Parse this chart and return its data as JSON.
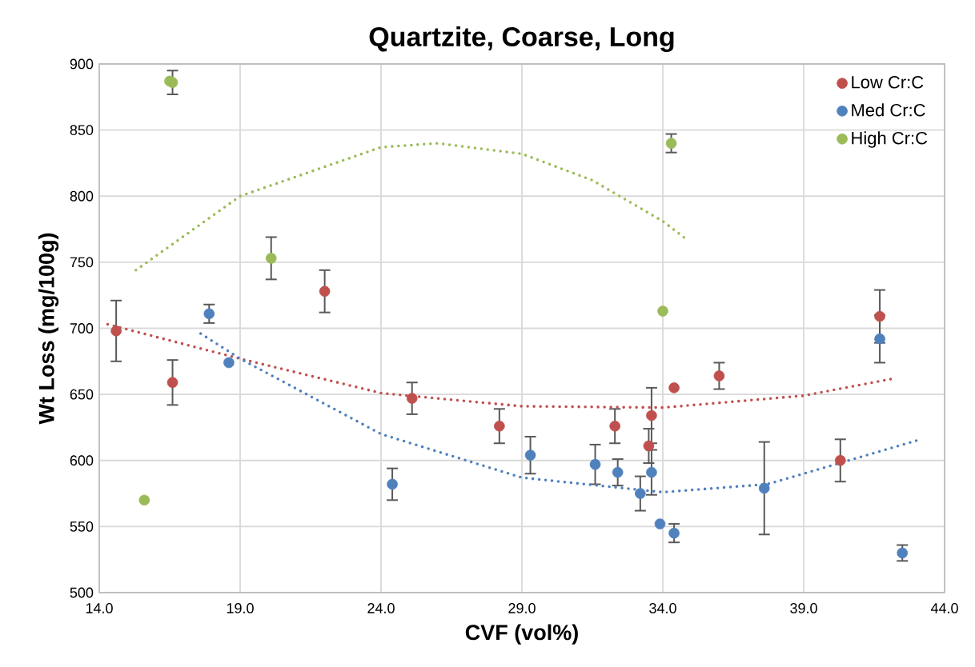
{
  "chart_data": {
    "type": "scatter",
    "title": "Quartzite, Coarse, Long",
    "xlabel": "CVF (vol%)",
    "ylabel": "Wt Loss (mg/100g)",
    "xlim": [
      14,
      44
    ],
    "ylim": [
      500,
      900
    ],
    "xticks": [
      {
        "value": 14,
        "label": "14.0"
      },
      {
        "value": 19,
        "label": "19.0"
      },
      {
        "value": 24,
        "label": "24.0"
      },
      {
        "value": 29,
        "label": "29.0"
      },
      {
        "value": 34,
        "label": "34.0"
      },
      {
        "value": 39,
        "label": "39.0"
      },
      {
        "value": 44,
        "label": "44.0"
      }
    ],
    "yticks": [
      500,
      550,
      600,
      650,
      700,
      750,
      800,
      850,
      900
    ],
    "grid": true,
    "legend": "top right",
    "marker": "circle",
    "series": [
      {
        "name": "Low Cr:C",
        "color": "#c0504d",
        "x": [
          14.6,
          16.6,
          22.0,
          25.1,
          28.2,
          32.3,
          33.5,
          33.6,
          34.4,
          36.0,
          40.3,
          41.7
        ],
        "values": [
          698,
          659,
          728,
          647,
          626,
          626,
          611,
          634,
          655,
          664,
          600,
          709
        ],
        "errors": [
          23,
          17,
          16,
          12,
          13,
          13,
          13,
          21,
          null,
          10,
          16,
          20
        ]
      },
      {
        "name": "Med Cr:C",
        "color": "#4f81bd",
        "x": [
          17.9,
          18.6,
          24.4,
          29.3,
          31.6,
          32.4,
          33.2,
          33.6,
          33.9,
          34.4,
          37.6,
          41.7,
          42.5
        ],
        "values": [
          711,
          674,
          582,
          604,
          597,
          591,
          575,
          591,
          552,
          545,
          579,
          692,
          530
        ],
        "errors": [
          7,
          null,
          12,
          14,
          15,
          10,
          13,
          17,
          null,
          7,
          35,
          18,
          6
        ]
      },
      {
        "name": "High Cr:C",
        "color": "#9bbb59",
        "x": [
          16.5,
          16.6,
          15.6,
          20.1,
          34.3,
          34.0
        ],
        "values": [
          887,
          886,
          570,
          753,
          840,
          713
        ],
        "errors": [
          null,
          9,
          null,
          16,
          7,
          null
        ]
      },
      {
        "type": "line",
        "color": "#c0504d",
        "marker": "none",
        "line_style": "dotted",
        "x": [
          14.3,
          19,
          24,
          29,
          34,
          39,
          42.2
        ],
        "values": [
          703,
          677,
          651,
          641,
          640,
          649,
          662
        ]
      },
      {
        "type": "line",
        "color": "#4f81bd",
        "marker": "none",
        "line_style": "dotted",
        "x": [
          17.6,
          19,
          24,
          29,
          34,
          37.7,
          39,
          43
        ],
        "values": [
          696,
          677,
          620,
          587,
          576,
          582,
          590,
          615
        ]
      },
      {
        "type": "line",
        "color": "#9bbb59",
        "marker": "none",
        "line_style": "dotted",
        "x": [
          15.3,
          19,
          24,
          26,
          29,
          31.5,
          34,
          34.8
        ],
        "values": [
          744,
          800,
          837,
          840,
          832,
          812,
          781,
          768
        ]
      }
    ]
  }
}
